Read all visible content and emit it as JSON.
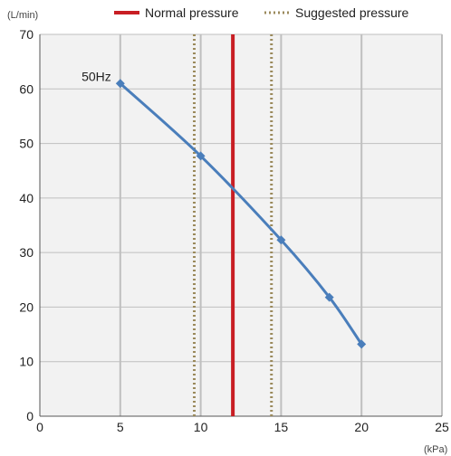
{
  "chart_data": {
    "type": "line",
    "x": [
      5,
      10,
      15,
      18,
      20
    ],
    "series": [
      {
        "name": "50Hz",
        "values": [
          61,
          47.7,
          32.3,
          21.8,
          13.2
        ],
        "color": "#4a7ebb",
        "marker": "diamond"
      }
    ],
    "reference_lines": [
      {
        "name": "Normal pressure",
        "x": [
          12
        ],
        "color": "#c81e24",
        "style": "solid"
      },
      {
        "name": "Suggested pressure",
        "x": [
          9.6,
          14.4
        ],
        "color": "#9b8a5c",
        "style": "dotted"
      }
    ],
    "xlim": [
      0,
      25
    ],
    "ylim": [
      0,
      70
    ],
    "x_ticks": [
      "0",
      "5",
      "10",
      "15",
      "20",
      "25"
    ],
    "y_ticks": [
      "0",
      "10",
      "20",
      "30",
      "40",
      "50",
      "60",
      "70"
    ],
    "x_unit": "(kPa)",
    "y_unit": "(L/min)",
    "grid": true,
    "legend_position": "top-right",
    "plot_background": "#f2f2f2",
    "grid_color": "#bfbfbf",
    "annotations": [
      {
        "text": "50Hz",
        "series": "50Hz"
      }
    ]
  },
  "legend": {
    "normal_label": "Normal pressure",
    "suggested_label": "Suggested pressure"
  }
}
